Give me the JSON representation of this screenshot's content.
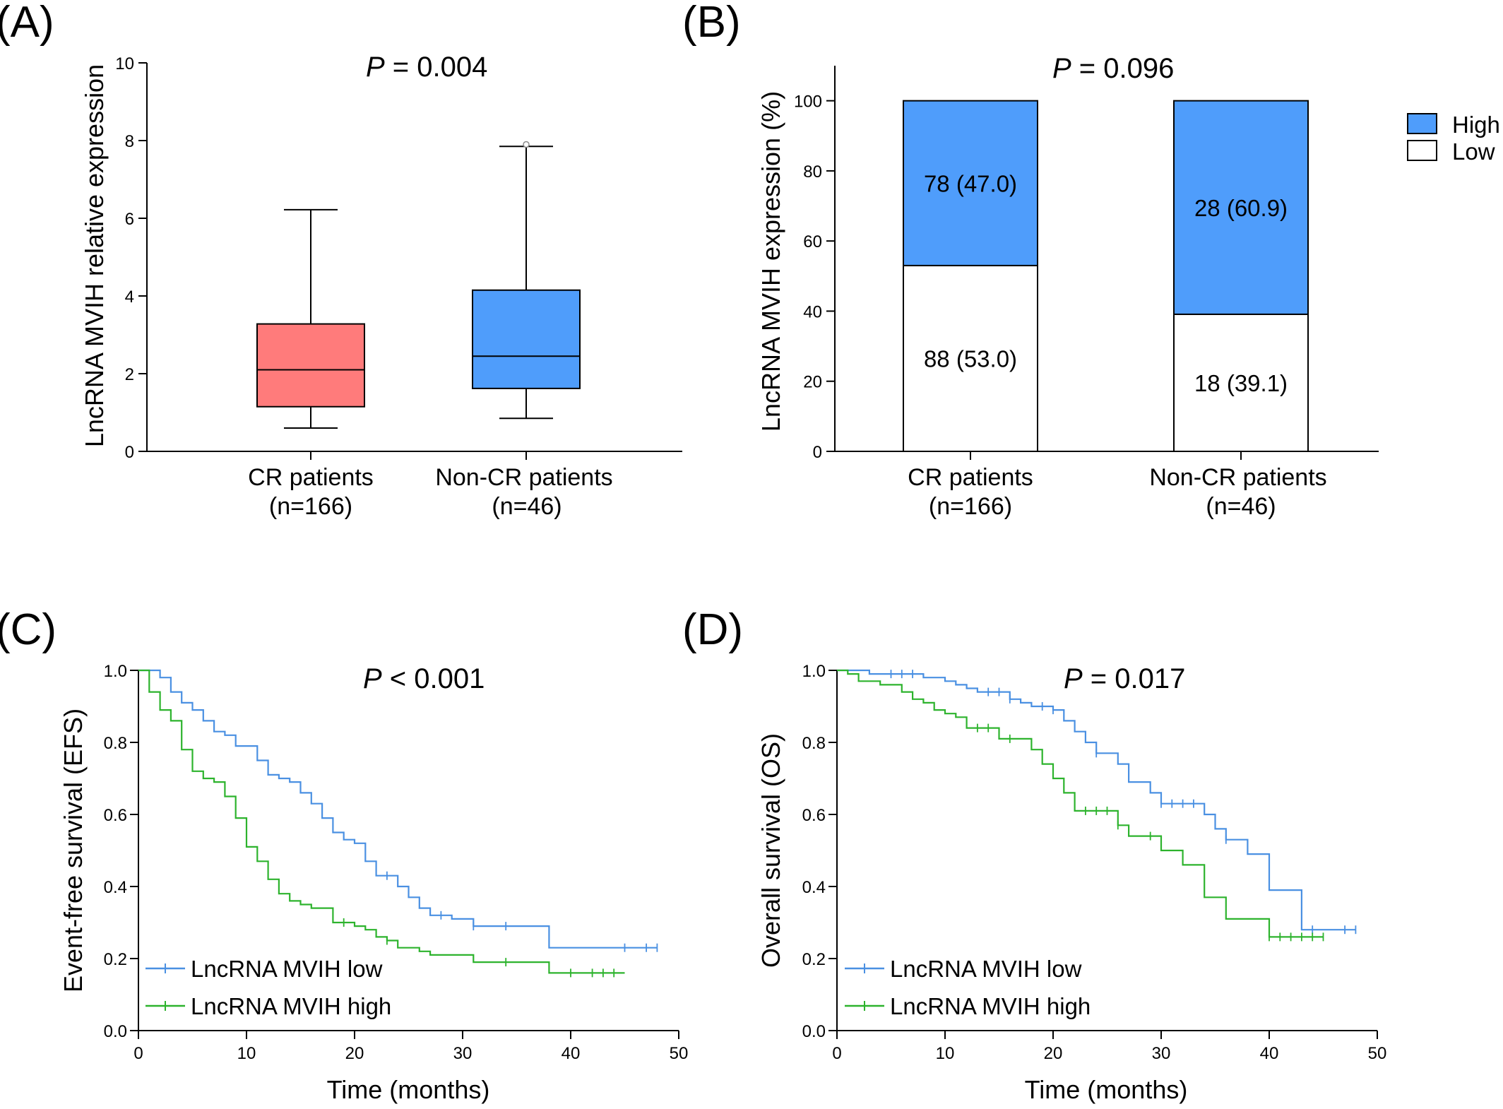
{
  "panels": {
    "a": {
      "label": "(A)",
      "p_prefix": "P",
      "p_rest": " = 0.004"
    },
    "b": {
      "label": "(B)",
      "p_prefix": "P",
      "p_rest": " = 0.096"
    },
    "c": {
      "label": "(C)",
      "p_prefix": "P",
      "p_rest": " < 0.001"
    },
    "d": {
      "label": "(D)",
      "p_prefix": "P",
      "p_rest": " = 0.017"
    }
  },
  "colors": {
    "red": "#FF7B7B",
    "blue": "#4F9DFB",
    "km_low": "#4A90E2",
    "km_high": "#2DB32D"
  },
  "chart_data": [
    {
      "panel": "A",
      "type": "box",
      "ylabel": "LncRNA MVIH relative expression",
      "ylim": [
        0,
        10
      ],
      "yticks": [
        0,
        2,
        4,
        6,
        8,
        10
      ],
      "categories": [
        {
          "line1": "CR patients",
          "line2": "(n=166)",
          "min": 0.6,
          "q1": 1.15,
          "median": 2.1,
          "q3": 3.28,
          "max": 6.22,
          "color": "#FF7B7B",
          "outliers": []
        },
        {
          "line1": "Non-CR patients",
          "line2": "(n=46)",
          "min": 0.85,
          "q1": 1.62,
          "median": 2.45,
          "q3": 4.15,
          "max": 7.85,
          "color": "#4F9DFB",
          "outliers": [
            7.9
          ]
        }
      ]
    },
    {
      "panel": "B",
      "type": "bar",
      "stacked": true,
      "ylabel": "LncRNA MVIH expression (%)",
      "ylim": [
        0,
        110
      ],
      "yticks": [
        0,
        20,
        40,
        60,
        80,
        100
      ],
      "categories": [
        {
          "line1": "CR patients",
          "line2": "(n=166)"
        },
        {
          "line1": "Non-CR patients",
          "line2": "(n=46)"
        }
      ],
      "series": [
        {
          "name": "Low",
          "values": [
            53.0,
            39.1
          ],
          "labels": [
            "88 (53.0)",
            "18 (39.1)"
          ],
          "color": "#FFFFFF"
        },
        {
          "name": "High",
          "values": [
            47.0,
            60.9
          ],
          "labels": [
            "78 (47.0)",
            "28 (60.9)"
          ],
          "color": "#4F9DFB"
        }
      ],
      "legend_position": "top-right"
    },
    {
      "panel": "C",
      "type": "line",
      "step": true,
      "xlabel": "Time (months)",
      "ylabel": "Event-free survival (EFS)",
      "xlim": [
        0,
        50
      ],
      "ylim": [
        0,
        1
      ],
      "xticks": [
        0,
        10,
        20,
        30,
        40,
        50
      ],
      "yticks": [
        "0.0",
        "0.2",
        "0.4",
        "0.6",
        "0.8",
        "1.0"
      ],
      "legend_position": "bottom-left",
      "series": [
        {
          "name": "LncRNA MVIH low",
          "color": "#4A90E2",
          "x": [
            0,
            2,
            3,
            4,
            5,
            6,
            7,
            8,
            9,
            10,
            11,
            12,
            13,
            14,
            15,
            16,
            17,
            18,
            19,
            20,
            21,
            22,
            23,
            24,
            25,
            26,
            27,
            28,
            29,
            30,
            31,
            32,
            34,
            38,
            40,
            48
          ],
          "y": [
            1.0,
            0.98,
            0.94,
            0.91,
            0.89,
            0.86,
            0.83,
            0.82,
            0.79,
            0.79,
            0.75,
            0.71,
            0.7,
            0.69,
            0.66,
            0.63,
            0.59,
            0.55,
            0.53,
            0.52,
            0.47,
            0.43,
            0.43,
            0.4,
            0.37,
            0.34,
            0.32,
            0.32,
            0.31,
            0.31,
            0.29,
            0.29,
            0.29,
            0.23,
            0.23,
            0.23
          ],
          "censor_x": [
            23,
            28,
            31,
            34,
            45,
            47,
            48
          ]
        },
        {
          "name": "LncRNA MVIH high",
          "color": "#2DB32D",
          "x": [
            0,
            1,
            2,
            3,
            4,
            5,
            6,
            7,
            8,
            9,
            10,
            11,
            12,
            13,
            14,
            15,
            16,
            17,
            18,
            19,
            20,
            21,
            22,
            23,
            24,
            25,
            26,
            27,
            29,
            30,
            31,
            33,
            35,
            38,
            40,
            45
          ],
          "y": [
            1.0,
            0.94,
            0.89,
            0.86,
            0.78,
            0.72,
            0.7,
            0.69,
            0.65,
            0.59,
            0.51,
            0.47,
            0.42,
            0.38,
            0.36,
            0.35,
            0.34,
            0.34,
            0.3,
            0.3,
            0.29,
            0.28,
            0.26,
            0.25,
            0.23,
            0.23,
            0.22,
            0.21,
            0.21,
            0.21,
            0.19,
            0.19,
            0.19,
            0.16,
            0.16,
            0.16
          ],
          "censor_x": [
            19,
            23,
            34,
            40,
            42,
            43,
            44
          ]
        }
      ]
    },
    {
      "panel": "D",
      "type": "line",
      "step": true,
      "xlabel": "Time (months)",
      "ylabel": "Overall survival (OS)",
      "xlim": [
        0,
        50
      ],
      "ylim": [
        0,
        1
      ],
      "xticks": [
        0,
        10,
        20,
        30,
        40,
        50
      ],
      "yticks": [
        "0.0",
        "0.2",
        "0.4",
        "0.6",
        "0.8",
        "1.0"
      ],
      "legend_position": "bottom-left",
      "series": [
        {
          "name": "LncRNA MVIH low",
          "color": "#4A90E2",
          "x": [
            0,
            3,
            6,
            8,
            10,
            11,
            12,
            13,
            16,
            17,
            18,
            19,
            20,
            21,
            22,
            23,
            24,
            25,
            26,
            27,
            28,
            29,
            30,
            33,
            34,
            35,
            36,
            38,
            40,
            43,
            48
          ],
          "y": [
            1.0,
            0.99,
            0.99,
            0.98,
            0.97,
            0.96,
            0.95,
            0.94,
            0.92,
            0.91,
            0.9,
            0.9,
            0.89,
            0.86,
            0.83,
            0.8,
            0.77,
            0.77,
            0.74,
            0.69,
            0.69,
            0.66,
            0.63,
            0.63,
            0.6,
            0.56,
            0.53,
            0.49,
            0.39,
            0.28,
            0.28
          ],
          "censor_x": [
            5,
            6,
            7,
            14,
            15,
            16,
            19,
            20,
            24,
            30,
            31,
            32,
            33,
            36,
            44,
            47,
            48
          ]
        },
        {
          "name": "LncRNA MVIH high",
          "color": "#2DB32D",
          "x": [
            0,
            1,
            2,
            4,
            6,
            7,
            8,
            9,
            10,
            11,
            12,
            15,
            18,
            19,
            20,
            21,
            22,
            26,
            27,
            28,
            30,
            32,
            34,
            36,
            38,
            40,
            45
          ],
          "y": [
            1.0,
            0.99,
            0.97,
            0.96,
            0.94,
            0.92,
            0.91,
            0.89,
            0.88,
            0.87,
            0.84,
            0.81,
            0.78,
            0.74,
            0.7,
            0.66,
            0.61,
            0.57,
            0.54,
            0.54,
            0.5,
            0.46,
            0.37,
            0.31,
            0.31,
            0.26,
            0.26
          ],
          "censor_x": [
            13,
            14,
            16,
            23,
            24,
            25,
            26,
            29,
            40,
            41,
            42,
            43,
            44,
            45
          ]
        }
      ]
    }
  ]
}
